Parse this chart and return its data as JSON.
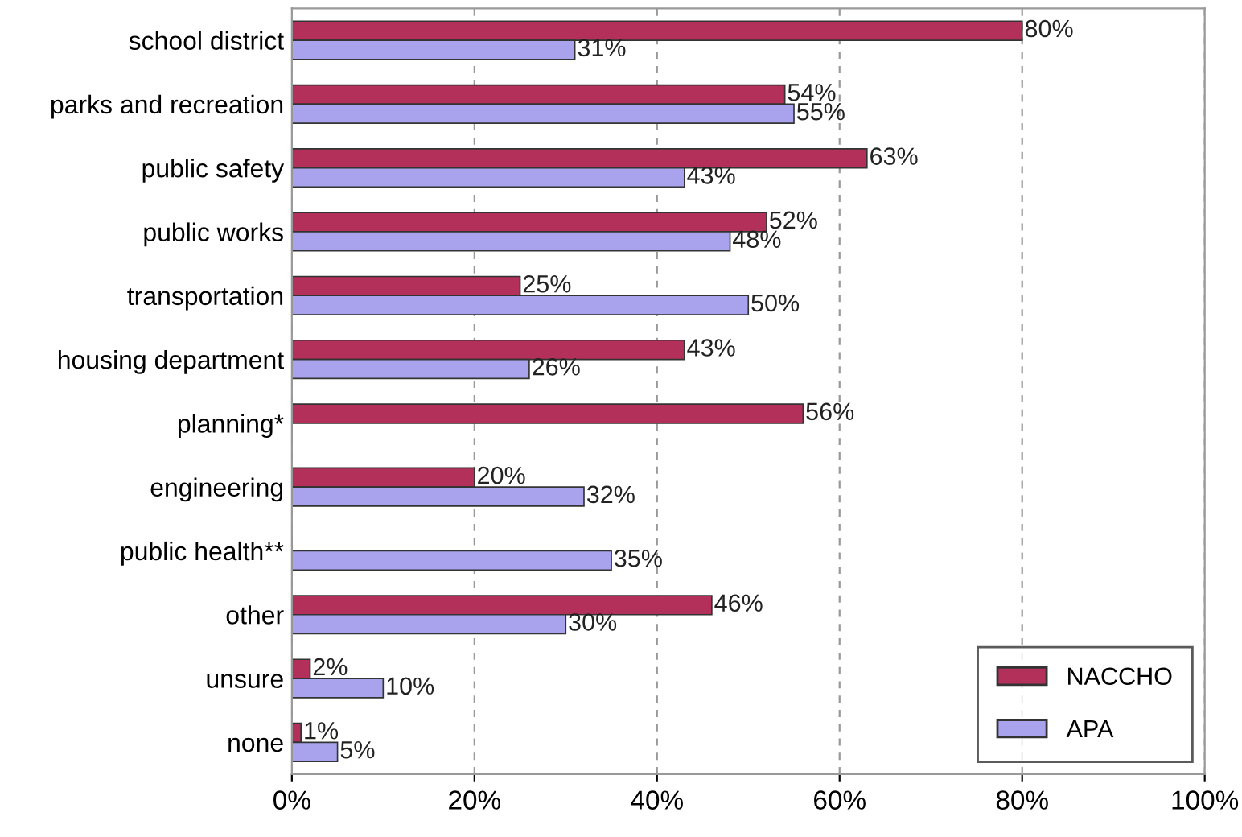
{
  "chart_data": {
    "type": "bar",
    "orientation": "horizontal",
    "categories": [
      "school district",
      "parks and recreation",
      "public safety",
      "public works",
      "transportation",
      "housing department",
      "planning*",
      "engineering",
      "public health**",
      "other",
      "unsure",
      "none"
    ],
    "series": [
      {
        "name": "NACCHO",
        "color": "#b3305a",
        "values": [
          80,
          54,
          63,
          52,
          25,
          43,
          56,
          20,
          null,
          46,
          2,
          1
        ],
        "value_labels": [
          "80%",
          "54%",
          "63%",
          "52%",
          "25%",
          "43%",
          "56%",
          "20%",
          null,
          "46%",
          "2%",
          "1%"
        ]
      },
      {
        "name": "APA",
        "color": "#a9a3ee",
        "values": [
          31,
          55,
          43,
          48,
          50,
          26,
          null,
          32,
          35,
          30,
          10,
          5
        ],
        "value_labels": [
          "31%",
          "55%",
          "43%",
          "48%",
          "50%",
          "26%",
          null,
          "32%",
          "35%",
          "30%",
          "10%",
          "5%"
        ]
      }
    ],
    "xlim": [
      0,
      100
    ],
    "xticks": [
      {
        "value": 0,
        "label": "0%"
      },
      {
        "value": 20,
        "label": "20%"
      },
      {
        "value": 40,
        "label": "40%"
      },
      {
        "value": 60,
        "label": "60%"
      },
      {
        "value": 80,
        "label": "80%"
      },
      {
        "value": 100,
        "label": "100%"
      }
    ],
    "grid": "x",
    "legend": "bottom right"
  }
}
